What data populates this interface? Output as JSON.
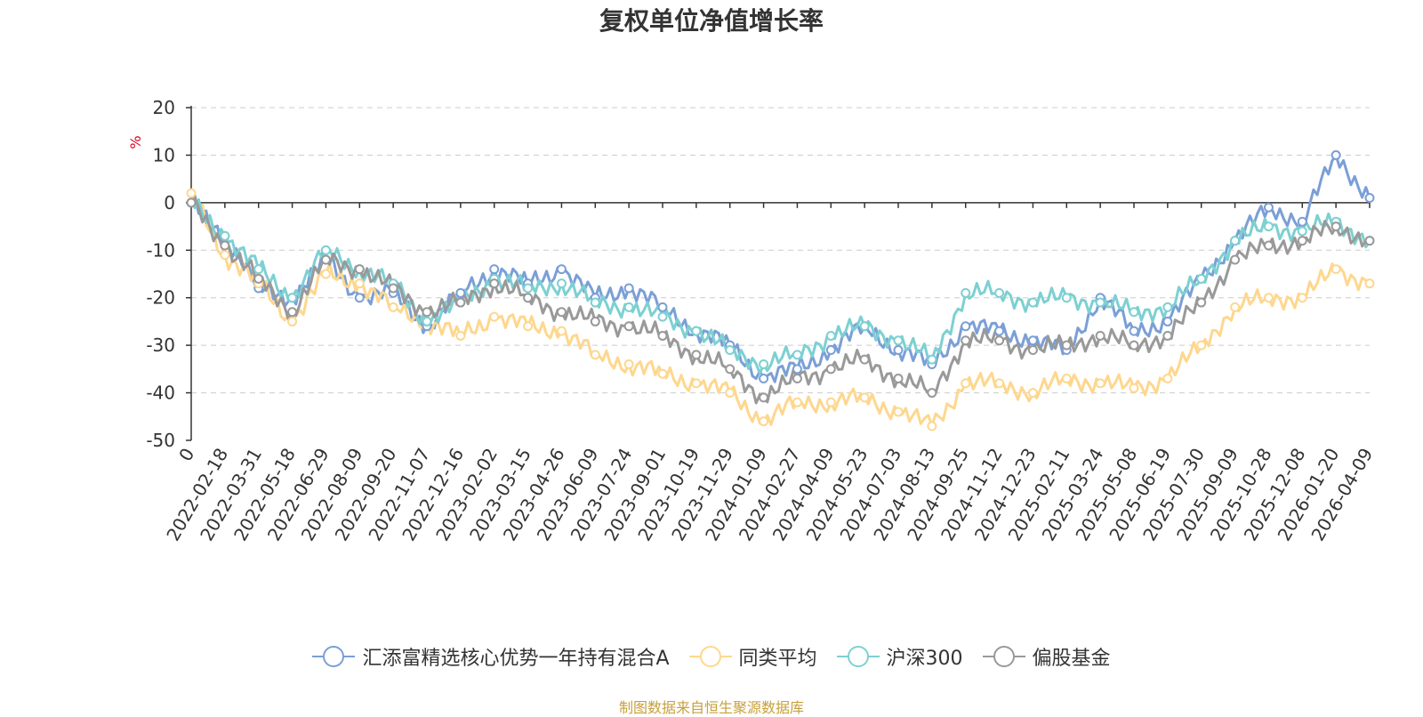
{
  "chart_data": {
    "type": "line",
    "title": "复权单位净值增长率",
    "ylabel": "%",
    "ylim": [
      -50,
      20
    ],
    "yticks": [
      20,
      10,
      0,
      -10,
      -20,
      -30,
      -40,
      -50
    ],
    "grid": true,
    "legend_position": "bottom",
    "source": "制图数据来自恒生聚源数据库",
    "categories": [
      "0",
      "2022-02-18",
      "2022-03-31",
      "2022-05-18",
      "2022-06-29",
      "2022-08-09",
      "2022-09-20",
      "2022-11-07",
      "2022-12-16",
      "2023-02-02",
      "2023-03-15",
      "2023-04-26",
      "2023-06-09",
      "2023-07-24",
      "2023-09-01",
      "2023-10-19",
      "2023-11-29",
      "2024-01-09",
      "2024-02-27",
      "2024-04-09",
      "2024-05-23",
      "2024-07-03",
      "2024-08-13",
      "2024-09-25",
      "2024-11-12",
      "2024-12-23",
      "2025-02-11",
      "2025-03-24",
      "2025-05-08",
      "2025-06-19",
      "2025-07-30",
      "2025-09-09",
      "2025-10-28",
      "2025-12-08",
      "2026-01-20",
      "2026-04-09"
    ],
    "series": [
      {
        "name": "汇添富精选核心优势一年持有混合A",
        "color": "#7b9fd6",
        "values": [
          0,
          -7,
          -18,
          -20,
          -12,
          -20,
          -19,
          -26,
          -19,
          -14,
          -17,
          -14,
          -20,
          -18,
          -22,
          -27,
          -30,
          -37,
          -35,
          -31,
          -26,
          -31,
          -34,
          -26,
          -27,
          -29,
          -31,
          -20,
          -27,
          -25,
          -16,
          -8,
          -1,
          -4,
          10,
          1
        ]
      },
      {
        "name": "同类平均",
        "color": "#fed78e",
        "values": [
          2,
          -11,
          -17,
          -25,
          -15,
          -17,
          -22,
          -25,
          -28,
          -24,
          -26,
          -27,
          -32,
          -34,
          -36,
          -38,
          -40,
          -46,
          -42,
          -42,
          -41,
          -44,
          -47,
          -38,
          -38,
          -40,
          -37,
          -38,
          -39,
          -37,
          -30,
          -22,
          -20,
          -20,
          -14,
          -17
        ]
      },
      {
        "name": "沪深300",
        "color": "#7dd0d2",
        "values": [
          0,
          -7,
          -14,
          -20,
          -10,
          -14,
          -17,
          -25,
          -21,
          -16,
          -18,
          -17,
          -21,
          -22,
          -24,
          -27,
          -31,
          -34,
          -32,
          -28,
          -26,
          -29,
          -33,
          -19,
          -19,
          -21,
          -20,
          -21,
          -23,
          -22,
          -16,
          -8,
          -5,
          -6,
          -4,
          -8
        ]
      },
      {
        "name": "偏股基金",
        "color": "#999999",
        "values": [
          0,
          -9,
          -16,
          -23,
          -12,
          -14,
          -18,
          -23,
          -21,
          -17,
          -20,
          -23,
          -25,
          -26,
          -28,
          -32,
          -35,
          -41,
          -37,
          -35,
          -33,
          -37,
          -40,
          -29,
          -29,
          -31,
          -30,
          -28,
          -30,
          -28,
          -21,
          -12,
          -9,
          -8,
          -5,
          -8
        ]
      }
    ]
  }
}
